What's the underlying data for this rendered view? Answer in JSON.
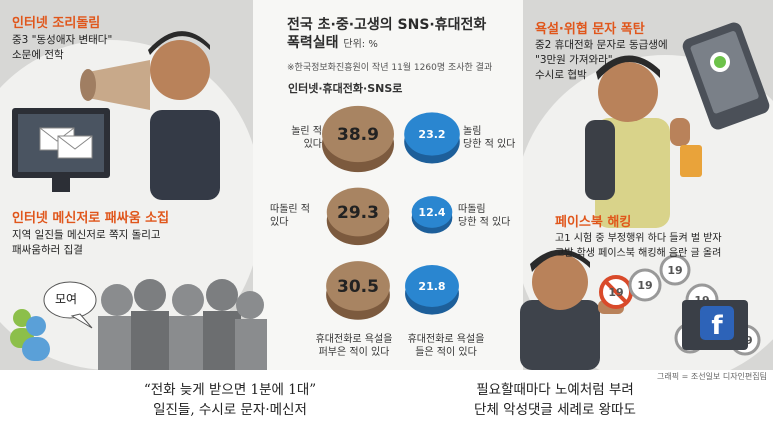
{
  "title": {
    "line1": "전국 초·중·고생의 SNS·휴대전화",
    "line2": "폭력실태",
    "unit": "단위: %"
  },
  "source": "※한국정보화진흥원이 작년 11월 1260명 조사한 결과",
  "subhead": "인터넷·휴대전화·SNS로",
  "chart_data": {
    "type": "bubble",
    "title": "전국 초·중·고생의 SNS·휴대전화 폭력실태",
    "unit": "%",
    "rows": [
      {
        "perpetrator_label": "놀린 적 있다",
        "perpetrator_value": 38.9,
        "victim_label": "놀림 당한 적 있다",
        "victim_value": 23.2
      },
      {
        "perpetrator_label": "따돌린 적 있다",
        "perpetrator_value": 29.3,
        "victim_label": "따돌림 당한 적 있다",
        "victim_value": 12.4
      },
      {
        "perpetrator_label": "휴대전화로 욕설을 퍼부은 적이 있다",
        "perpetrator_value": 30.5,
        "victim_label": "휴대전화로 욕설을 들은 적이 있다",
        "victim_value": 21.8
      }
    ],
    "colors": {
      "perpetrator": "#a88462",
      "victim": "#2a86d0"
    }
  },
  "labels": {
    "r1_left": [
      "놀린 적",
      "있다"
    ],
    "r1_right": [
      "놀림",
      "당한 적 있다"
    ],
    "r2_left": [
      "따돌린 적",
      "있다"
    ],
    "r2_right": [
      "따돌림",
      "당한 적 있다"
    ],
    "r3_left": [
      "휴대전화로 욕설을",
      "퍼부은 적이 있다"
    ],
    "r3_right": [
      "휴대전화로 욕설을",
      "들은 적이 있다"
    ]
  },
  "panels": {
    "p1": {
      "title": "인터넷 조리돌림",
      "lines": [
        "중3 \"동성애자 변태다\"",
        "소문에 전학"
      ]
    },
    "p2": {
      "title": "인터넷 메신저로 패싸움 소집",
      "lines": [
        "지역 일진들 메신저로 쪽지 돌리고",
        "패싸움하러 집결"
      ]
    },
    "p3": {
      "title": "욕설·위협 문자 폭탄",
      "lines": [
        "중2 휴대전화 문자로 동급생에",
        "\"3만원 가져와라\"",
        "수시로 협박"
      ]
    },
    "p4": {
      "title": "페이스북 해킹",
      "lines": [
        "고1 시험 중 부정행위 하다 들켜 벌 받자",
        "고발 학생 페이스북 해킹해 음란 글 올려"
      ]
    }
  },
  "bubble_text": "모여",
  "credit": "그래픽 = 조선일보 디자인편집팀",
  "captions": {
    "left": [
      "“전화 늦게 받으면 1분에 1대”",
      "일진들, 수시로 문자·메신저"
    ],
    "right": [
      "필요할때마다 노예처럼 부려",
      "단체 악성댓글 세례로 왕따도"
    ]
  },
  "icons": [
    "megaphone-icon",
    "envelope-icon",
    "monitor-icon",
    "phone-icon",
    "facebook-icon",
    "no-19-icon",
    "people-icon"
  ]
}
